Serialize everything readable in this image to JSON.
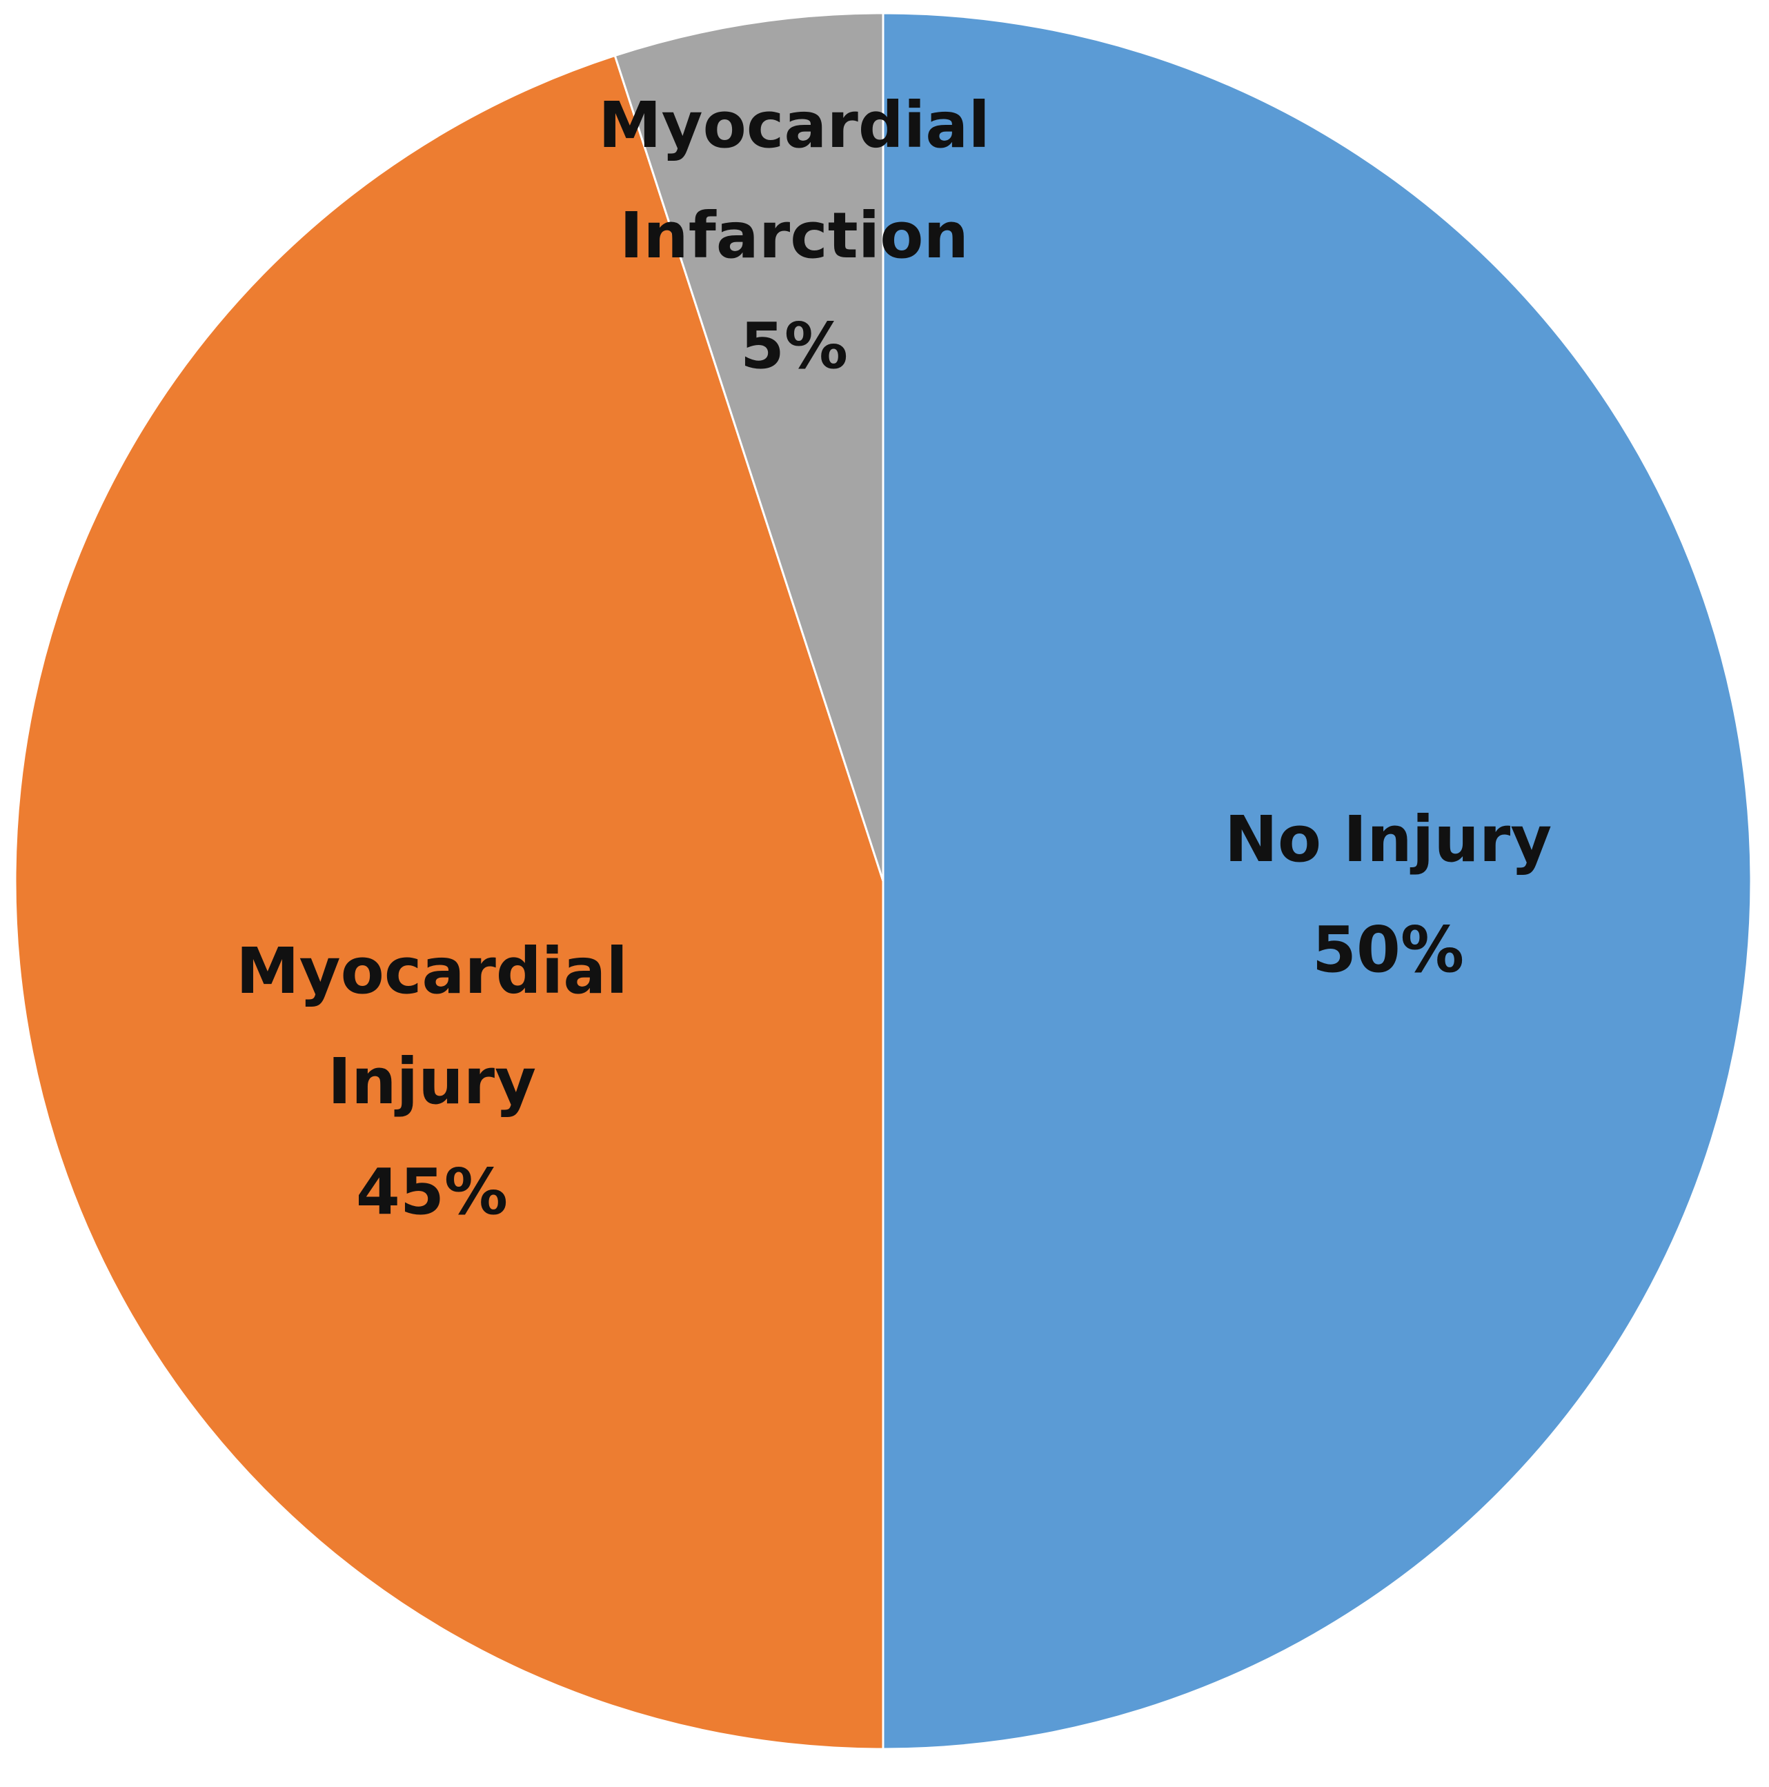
{
  "chart_data": {
    "type": "pie",
    "categories": [
      "No Injury",
      "Myocardial Injury",
      "Myocardial Infarction"
    ],
    "values": [
      50,
      45,
      5
    ],
    "value_labels": [
      "50%",
      "45%",
      "5%"
    ],
    "colors": [
      "#5b9bd5",
      "#ed7d31",
      "#a5a5a5"
    ]
  }
}
